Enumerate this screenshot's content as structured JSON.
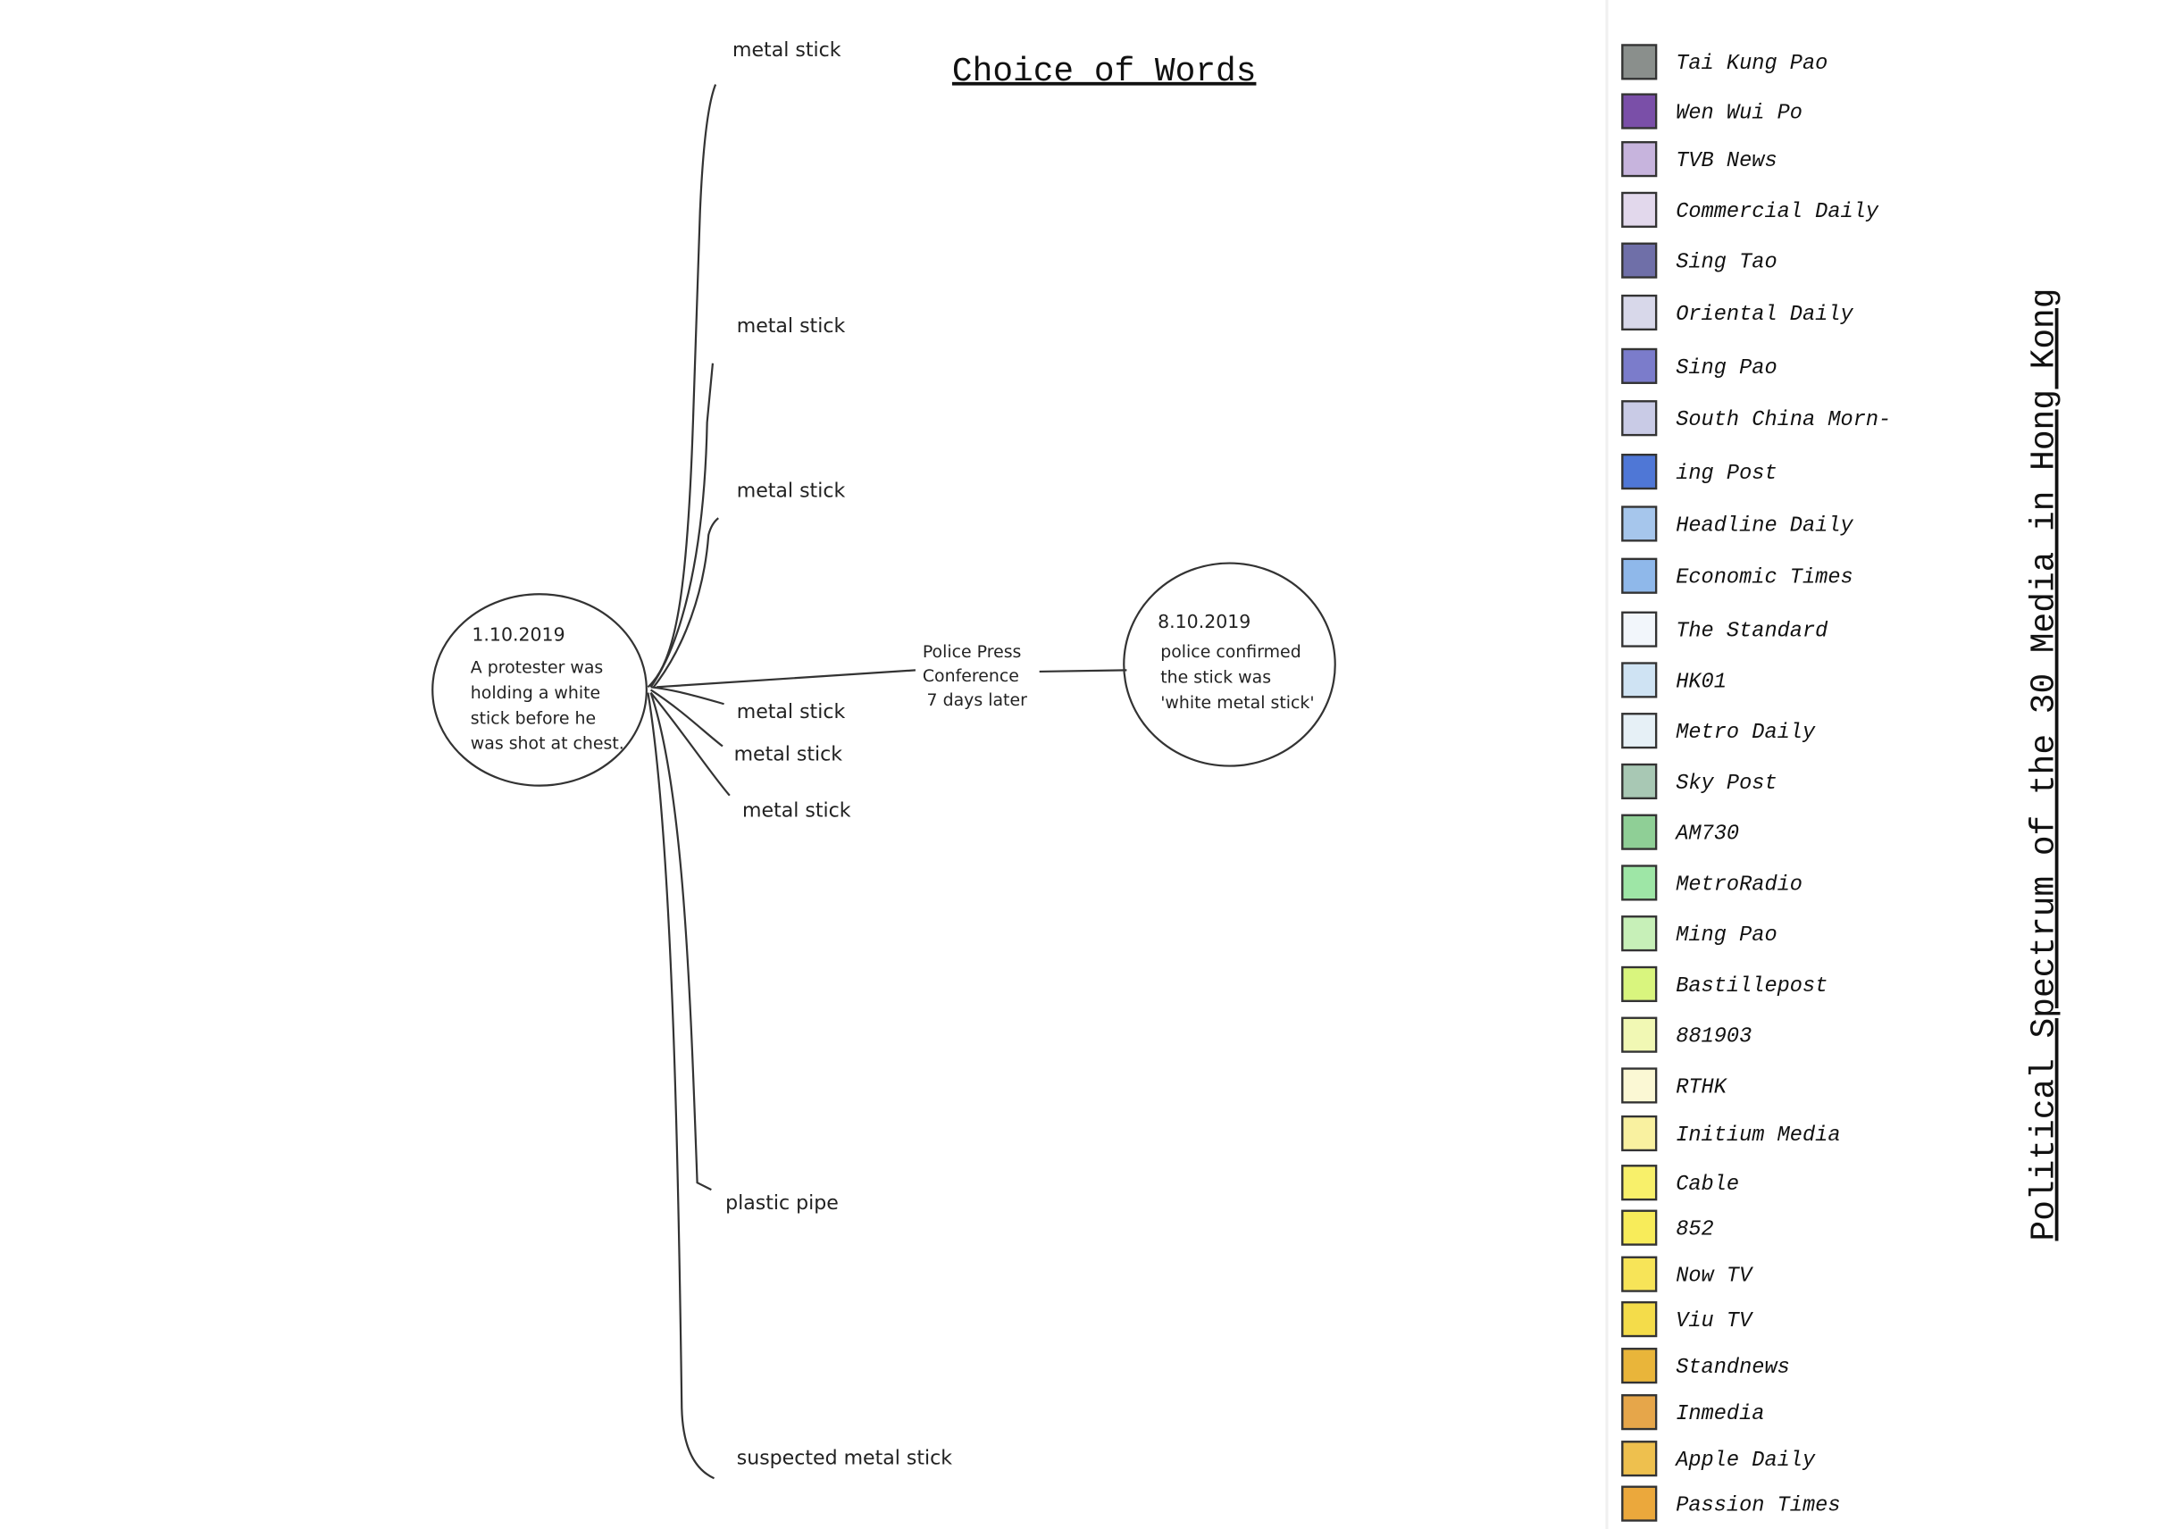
{
  "title": "Choice of Words",
  "event": {
    "date": "1.10.2019",
    "lines": [
      "A protester was",
      "holding a white",
      "stick before he",
      "was shot at chest."
    ]
  },
  "confirmation": {
    "date": "8.10.2019",
    "lines": [
      "police confirmed",
      "the stick was",
      "'white metal stick'"
    ]
  },
  "edge_label": [
    "Police Press",
    "Conference",
    "7 days later"
  ],
  "branches": [
    "metal stick",
    "metal stick",
    "metal stick",
    "metal stick",
    "metal stick",
    "metal stick",
    "plastic pipe",
    "suspected metal stick"
  ],
  "legend": {
    "title": "Political Spectrum of the 30 Media in Hong Kong",
    "items": [
      {
        "name": "Tai Kung Pao",
        "color": "#8a8f8c"
      },
      {
        "name": "Wen Wui Po",
        "color": "#7a4fa8"
      },
      {
        "name": "TVB News",
        "color": "#c7b4dd"
      },
      {
        "name": "Commercial Daily",
        "color": "#e2d8ec"
      },
      {
        "name": "Sing Tao",
        "color": "#6f6fa8"
      },
      {
        "name": "Oriental Daily",
        "color": "#d8d8ea"
      },
      {
        "name": "Sing Pao",
        "color": "#7b7ccb"
      },
      {
        "name": "South China Morn-",
        "color": "#c9cbe6"
      },
      {
        "name": "ing Post",
        "color": "#4f77d6"
      },
      {
        "name": "Headline Daily",
        "color": "#a6c6ec"
      },
      {
        "name": "Economic Times",
        "color": "#8fb8ea"
      },
      {
        "name": "The Standard",
        "color": "#f2f6fb"
      },
      {
        "name": "HK01",
        "color": "#cfe3f3"
      },
      {
        "name": "Metro Daily",
        "color": "#e6f0f6"
      },
      {
        "name": "Sky Post",
        "color": "#a8c8b4"
      },
      {
        "name": "AM730",
        "color": "#8fcf96"
      },
      {
        "name": "MetroRadio",
        "color": "#9ee6a6"
      },
      {
        "name": "Ming Pao",
        "color": "#c7f0b8"
      },
      {
        "name": "Bastillepost",
        "color": "#d9f57e"
      },
      {
        "name": "881903",
        "color": "#f1f8b4"
      },
      {
        "name": "RTHK",
        "color": "#fbf8d4"
      },
      {
        "name": "Initium Media",
        "color": "#f9f1a0"
      },
      {
        "name": "Cable",
        "color": "#f8f06a"
      },
      {
        "name": "852",
        "color": "#f8ec5a"
      },
      {
        "name": "Now TV",
        "color": "#f7e458"
      },
      {
        "name": "Viu TV",
        "color": "#f4dc4a"
      },
      {
        "name": "Standnews",
        "color": "#e9b53a"
      },
      {
        "name": "Inmedia",
        "color": "#e6a64a"
      },
      {
        "name": "Apple Daily",
        "color": "#eec04e"
      },
      {
        "name": "Passion Times",
        "color": "#eba83c"
      }
    ]
  }
}
